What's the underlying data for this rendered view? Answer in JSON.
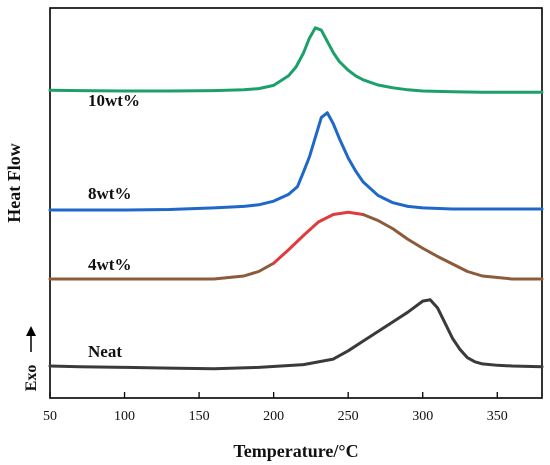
{
  "chart_data": {
    "type": "line",
    "xlabel": "Temperature/°C",
    "ylabel": "Heat Flow",
    "exo_label": "Exo",
    "xlim": [
      50,
      380
    ],
    "xticks": [
      50,
      100,
      150,
      200,
      250,
      300,
      350
    ],
    "y_ticks_shown": false,
    "grid": false,
    "legend": "none",
    "series": [
      {
        "name": "10wt%",
        "color": "#1ba06a",
        "x": [
          50,
          70,
          100,
          130,
          160,
          180,
          190,
          200,
          210,
          215,
          220,
          224,
          228,
          232,
          236,
          240,
          244,
          250,
          255,
          260,
          270,
          280,
          290,
          300,
          320,
          340,
          360,
          380
        ],
        "y": [
          0.62,
          0.61,
          0.6,
          0.6,
          0.61,
          0.63,
          0.66,
          0.74,
          0.98,
          1.2,
          1.55,
          1.92,
          2.18,
          2.12,
          1.84,
          1.56,
          1.34,
          1.12,
          0.98,
          0.88,
          0.75,
          0.68,
          0.63,
          0.6,
          0.58,
          0.57,
          0.57,
          0.57
        ]
      },
      {
        "name": "8wt%",
        "color": "#1f68c9",
        "x": [
          50,
          80,
          100,
          130,
          160,
          180,
          190,
          200,
          210,
          216,
          220,
          224,
          228,
          232,
          236,
          240,
          244,
          250,
          255,
          260,
          270,
          280,
          290,
          300,
          320,
          340,
          360,
          380
        ],
        "y": [
          0.0,
          0.0,
          0.0,
          0.01,
          0.04,
          0.07,
          0.1,
          0.17,
          0.3,
          0.45,
          0.73,
          1.02,
          1.4,
          1.78,
          1.87,
          1.66,
          1.38,
          1.0,
          0.75,
          0.54,
          0.28,
          0.14,
          0.07,
          0.04,
          0.02,
          0.02,
          0.02,
          0.02
        ]
      },
      {
        "name": "4wt%",
        "color_rising": "#e03b3f",
        "color": "#8c5b3c",
        "x": [
          50,
          80,
          100,
          130,
          160,
          180,
          190,
          200,
          210,
          220,
          230,
          240,
          250,
          260,
          270,
          280,
          290,
          300,
          310,
          320,
          330,
          340,
          360,
          380
        ],
        "y": [
          0.0,
          0.0,
          0.0,
          0.0,
          0.0,
          0.04,
          0.1,
          0.21,
          0.39,
          0.58,
          0.76,
          0.86,
          0.89,
          0.86,
          0.78,
          0.67,
          0.53,
          0.41,
          0.3,
          0.2,
          0.1,
          0.04,
          0.0,
          0.0
        ]
      },
      {
        "name": "Neat",
        "color": "#3a3a3a",
        "x": [
          50,
          70,
          100,
          130,
          160,
          190,
          220,
          240,
          250,
          260,
          270,
          280,
          290,
          300,
          305,
          310,
          315,
          320,
          325,
          330,
          335,
          340,
          350,
          360,
          380
        ],
        "y": [
          0.0,
          -0.01,
          -0.02,
          -0.03,
          -0.04,
          -0.02,
          0.02,
          0.1,
          0.22,
          0.36,
          0.5,
          0.64,
          0.78,
          0.94,
          0.96,
          0.84,
          0.62,
          0.4,
          0.24,
          0.12,
          0.06,
          0.03,
          0.01,
          0.0,
          -0.01
        ]
      }
    ]
  }
}
